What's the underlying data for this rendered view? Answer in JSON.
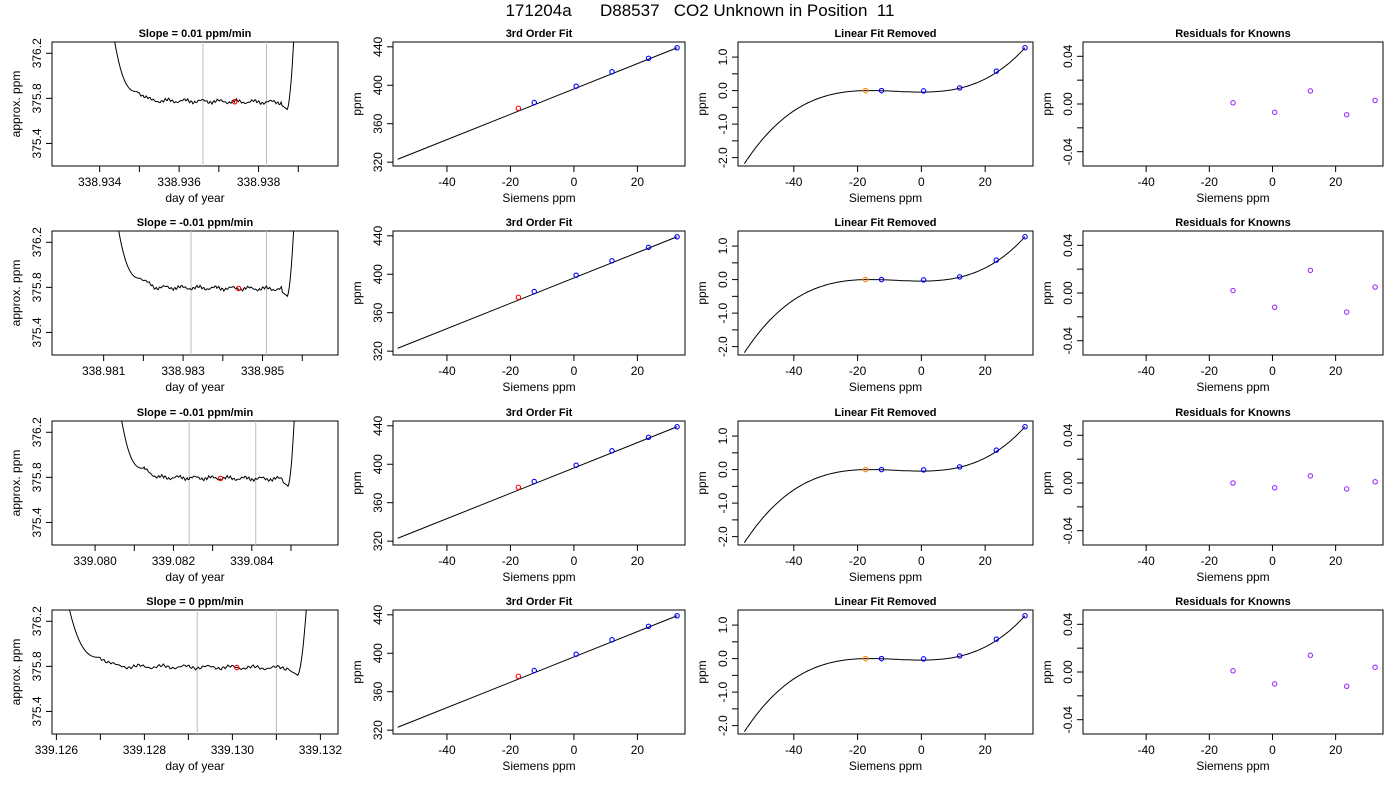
{
  "page_title": "171204a      D88537   CO2 Unknown in Position  11",
  "colors": {
    "axis": "#000000",
    "trace": "#000000",
    "fit_line": "#000000",
    "marker_line": "#bebebe",
    "unknown_point": "#ff0000",
    "unknown_fit_point": "#ff7f00",
    "known_point": "#0000ff",
    "residual_point": "#9b30ff"
  },
  "chart_data": [
    {
      "type": "line",
      "panel": "time-series",
      "row": 0,
      "title": "Slope =  0.01  ppm/min",
      "xlabel": "day of year",
      "ylabel": "approx. ppm",
      "xlim": [
        338.9328,
        338.94
      ],
      "ylim": [
        375.2,
        376.3
      ],
      "xticks": [
        338.934,
        338.936,
        338.938
      ],
      "yticks": [
        375.4,
        375.8,
        376.2
      ],
      "xminor_ticks": [
        338.935,
        338.937,
        338.939
      ],
      "markers_x": [
        338.9366,
        338.9382
      ],
      "unknown_point": {
        "x": 338.9374,
        "y": 375.77
      },
      "trace": {
        "start": 338.9343,
        "end": 338.9389,
        "level": 375.78,
        "peak": 376.3
      }
    },
    {
      "type": "line",
      "panel": "time-series",
      "row": 1,
      "title": "Slope =  -0.01  ppm/min",
      "xlabel": "day of year",
      "ylabel": "approx. ppm",
      "xlim": [
        338.9797,
        338.9869
      ],
      "ylim": [
        375.2,
        376.3
      ],
      "xticks": [
        338.981,
        338.983,
        338.985
      ],
      "yticks": [
        375.4,
        375.8,
        376.2
      ],
      "xminor_ticks": [
        338.982,
        338.984,
        338.986
      ],
      "markers_x": [
        338.9832,
        338.9851
      ],
      "unknown_point": {
        "x": 338.9844,
        "y": 375.79
      },
      "trace": {
        "start": 338.9813,
        "end": 338.9858,
        "level": 375.8,
        "peak": 376.3
      }
    },
    {
      "type": "line",
      "panel": "time-series",
      "row": 2,
      "title": "Slope =  -0.01  ppm/min",
      "xlabel": "day of year",
      "ylabel": "approx. ppm",
      "xlim": [
        339.0789,
        339.0862
      ],
      "ylim": [
        375.2,
        376.3
      ],
      "xticks": [
        339.08,
        339.082,
        339.084
      ],
      "yticks": [
        375.4,
        375.8,
        376.2
      ],
      "xminor_ticks": [
        339.081,
        339.083,
        339.085
      ],
      "markers_x": [
        339.0824,
        339.0841
      ],
      "unknown_point": {
        "x": 339.0832,
        "y": 375.79
      },
      "trace": {
        "start": 339.0806,
        "end": 339.0851,
        "level": 375.8,
        "peak": 376.3
      }
    },
    {
      "type": "line",
      "panel": "time-series",
      "row": 3,
      "title": "Slope =  0  ppm/min",
      "xlabel": "day of year",
      "ylabel": "approx. ppm",
      "xlim": [
        339.1259,
        339.1324
      ],
      "ylim": [
        375.2,
        376.3
      ],
      "xticks": [
        339.126,
        339.128,
        339.13,
        339.132
      ],
      "yticks": [
        375.4,
        375.8,
        376.2
      ],
      "xminor_ticks": [
        339.127,
        339.129,
        339.131
      ],
      "markers_x": [
        339.1292,
        339.131
      ],
      "unknown_point": {
        "x": 339.1301,
        "y": 375.79
      },
      "trace": {
        "start": 339.1262,
        "end": 339.1317,
        "level": 375.8,
        "peak": 376.3
      }
    },
    {
      "type": "scatter",
      "panel": "third-order-fit",
      "title": "3rd Order Fit",
      "xlabel": "Siemens ppm",
      "ylabel": "ppm",
      "xlim": [
        -57,
        35
      ],
      "ylim": [
        316,
        445
      ],
      "xticks": [
        -40,
        -20,
        0,
        20
      ],
      "yticks": [
        320,
        360,
        400,
        440
      ],
      "fit_line": {
        "x": [
          -55.5,
          32.5
        ],
        "y": [
          323,
          439
        ]
      },
      "knowns": {
        "x": [
          -12.5,
          0.7,
          12.0,
          23.5,
          32.5
        ],
        "y": [
          382,
          399,
          414,
          428,
          439
        ]
      },
      "unknown": {
        "x": -17.5,
        "y": 376
      }
    },
    {
      "type": "line",
      "panel": "linear-fit-removed",
      "title": "Linear Fit Removed",
      "xlabel": "Siemens ppm",
      "ylabel": "ppm",
      "xlim": [
        -57.5,
        35
      ],
      "ylim": [
        -2.25,
        1.45
      ],
      "xticks": [
        -40,
        -20,
        0,
        20
      ],
      "yticks": [
        -2.0,
        -1.0,
        0.0,
        1.0
      ],
      "yminor_ticks": [
        -1.5,
        -0.5,
        0.5
      ],
      "curve": "cubic",
      "curve_points": {
        "x": [
          -55.5,
          -17.5,
          6,
          32.5
        ],
        "y": [
          -2.18,
          0.0,
          -0.02,
          1.28
        ]
      },
      "knowns": {
        "x": [
          -12.5,
          0.7,
          12.0,
          23.5,
          32.5
        ],
        "y": [
          0.0,
          -0.01,
          0.08,
          0.58,
          1.28
        ]
      },
      "unknown": {
        "x": -17.5,
        "y": 0.0
      }
    },
    {
      "type": "scatter",
      "panel": "residuals",
      "title": "Residuals for Knowns",
      "xlabel": "Siemens ppm",
      "ylabel": "ppm",
      "xlim": [
        -60,
        35
      ],
      "ylim": [
        -0.052,
        0.052
      ],
      "xticks": [
        -40,
        -20,
        0,
        20
      ],
      "yticks": [
        -0.04,
        0.0,
        0.04
      ],
      "yminor_ticks": [
        -0.02,
        0.02
      ],
      "rows": [
        {
          "x": [
            -12.5,
            0.7,
            12.0,
            23.5,
            32.5
          ],
          "y": [
            0.001,
            -0.007,
            0.011,
            -0.009,
            0.003
          ]
        },
        {
          "x": [
            -12.5,
            0.7,
            12.0,
            23.5,
            32.5
          ],
          "y": [
            0.002,
            -0.012,
            0.019,
            -0.016,
            0.005
          ]
        },
        {
          "x": [
            -12.5,
            0.7,
            12.0,
            23.5,
            32.5
          ],
          "y": [
            0.0,
            -0.004,
            0.006,
            -0.005,
            0.001
          ]
        },
        {
          "x": [
            -12.5,
            0.7,
            12.0,
            23.5,
            32.5
          ],
          "y": [
            0.001,
            -0.01,
            0.014,
            -0.012,
            0.004
          ]
        }
      ]
    }
  ]
}
